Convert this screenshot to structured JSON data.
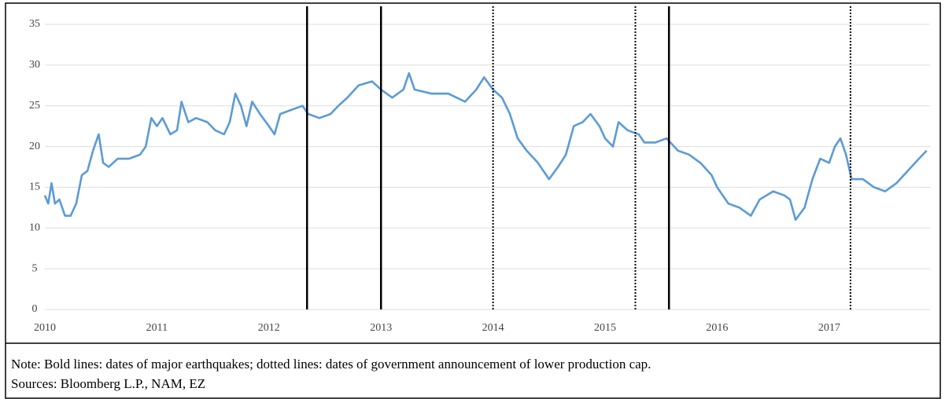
{
  "chart_data": {
    "type": "line",
    "x": [
      2010.0,
      2010.03,
      2010.06,
      2010.09,
      2010.13,
      2010.18,
      2010.23,
      2010.28,
      2010.33,
      2010.38,
      2010.43,
      2010.48,
      2010.52,
      2010.57,
      2010.65,
      2010.75,
      2010.85,
      2010.9,
      2010.95,
      2011.0,
      2011.05,
      2011.12,
      2011.18,
      2011.22,
      2011.28,
      2011.35,
      2011.45,
      2011.52,
      2011.6,
      2011.65,
      2011.7,
      2011.75,
      2011.8,
      2011.85,
      2011.92,
      2012.0,
      2012.05,
      2012.1,
      2012.2,
      2012.3,
      2012.35,
      2012.45,
      2012.55,
      2012.62,
      2012.7,
      2012.8,
      2012.92,
      2013.0,
      2013.1,
      2013.2,
      2013.25,
      2013.3,
      2013.45,
      2013.6,
      2013.75,
      2013.85,
      2013.92,
      2014.0,
      2014.08,
      2014.15,
      2014.22,
      2014.3,
      2014.4,
      2014.5,
      2014.58,
      2014.65,
      2014.72,
      2014.8,
      2014.87,
      2014.95,
      2015.0,
      2015.07,
      2015.12,
      2015.2,
      2015.3,
      2015.35,
      2015.45,
      2015.55,
      2015.65,
      2015.75,
      2015.85,
      2015.95,
      2016.0,
      2016.1,
      2016.2,
      2016.3,
      2016.38,
      2016.5,
      2016.6,
      2016.65,
      2016.7,
      2016.78,
      2016.85,
      2016.92,
      2017.0,
      2017.05,
      2017.1,
      2017.15,
      2017.2,
      2017.3,
      2017.4,
      2017.5,
      2017.6,
      2017.7,
      2017.8,
      2017.87
    ],
    "values": [
      14,
      13,
      15.5,
      13,
      13.5,
      11.5,
      11.5,
      13,
      16.5,
      17,
      19.5,
      21.5,
      18,
      17.5,
      18.5,
      18.5,
      19,
      20,
      23.5,
      22.5,
      23.5,
      21.5,
      22,
      25.5,
      23,
      23.5,
      23,
      22,
      21.5,
      23,
      26.5,
      25,
      22.5,
      25.5,
      24,
      22.5,
      21.5,
      24,
      24.5,
      25,
      24,
      23.5,
      24,
      25,
      26,
      27.5,
      28,
      27,
      26,
      27,
      29,
      27,
      26.5,
      26.5,
      25.5,
      27,
      28.5,
      27,
      26,
      24,
      21,
      19.5,
      18,
      16,
      17.5,
      19,
      22.5,
      23,
      24,
      22.5,
      21,
      20,
      23,
      22,
      21.5,
      20.5,
      20.5,
      21,
      19.5,
      19,
      18,
      16.5,
      15,
      13,
      12.5,
      11.5,
      13.5,
      14.5,
      14,
      13.5,
      11,
      12.5,
      16,
      18.5,
      18,
      20,
      21,
      19,
      16,
      16,
      15,
      14.5,
      15.5,
      17,
      18.5,
      19.5
    ],
    "color": "#5b9bd5",
    "xlim": [
      2010,
      2017.9
    ],
    "xticks": [
      2010,
      2011,
      2012,
      2013,
      2014,
      2015,
      2016,
      2017
    ],
    "ylim": [
      0,
      35
    ],
    "yticks": [
      0,
      5,
      10,
      15,
      20,
      25,
      30,
      35
    ],
    "grid": true,
    "vertical_lines": [
      {
        "x": 2012.34,
        "style": "solid"
      },
      {
        "x": 2013.0,
        "style": "solid"
      },
      {
        "x": 2015.57,
        "style": "solid"
      },
      {
        "x": 2014.0,
        "style": "dotted"
      },
      {
        "x": 2015.27,
        "style": "dotted"
      },
      {
        "x": 2017.19,
        "style": "dotted"
      }
    ],
    "note": "Note: Bold lines: dates of major earthquakes; dotted lines: dates of government announcement of lower production cap.",
    "sources": "Sources: Bloomberg L.P., NAM, EZ"
  }
}
